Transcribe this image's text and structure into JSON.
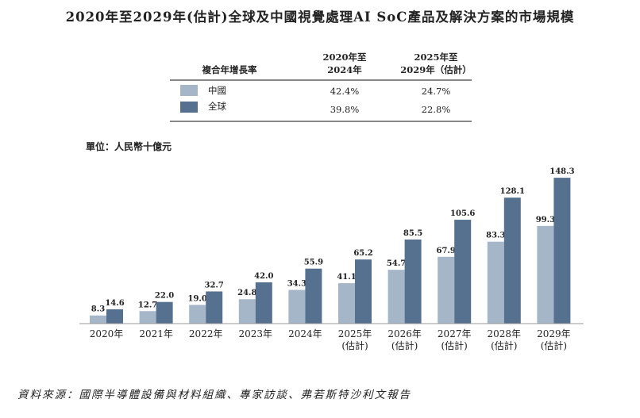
{
  "title": "2020年至2029年(估計)全球及中國視覺處理AI SoC產品及解決方案的市場規模",
  "cagr_table": {
    "label": "複合年增長率",
    "col1": [
      "2020年至",
      "2024年"
    ],
    "col2": [
      "2025年至",
      "2029年（估計）"
    ],
    "rows": [
      {
        "name": "中國",
        "v1": "42.4%",
        "v2": "24.7%"
      },
      {
        "name": "全球",
        "v1": "39.8%",
        "v2": "22.8%"
      }
    ]
  },
  "unit": "單位：人民幣十億元",
  "source": "資料來源：國際半導體設備與材料組織、專家訪談、弗若斯特沙利文報告",
  "colors": {
    "china": "#a5b6c9",
    "global": "#56708f"
  },
  "chart_data": {
    "type": "bar",
    "title": "2020年至2029年(估計)全球及中國視覺處理AI SoC產品及解決方案的市場規模",
    "ylabel": "單位：人民幣十億元",
    "categories": [
      [
        "2020年"
      ],
      [
        "2021年"
      ],
      [
        "2022年"
      ],
      [
        "2023年"
      ],
      [
        "2024年"
      ],
      [
        "2025年",
        "(估計)"
      ],
      [
        "2026年",
        "(估計)"
      ],
      [
        "2027年",
        "(估計)"
      ],
      [
        "2028年",
        "(估計)"
      ],
      [
        "2029年",
        "(估計)"
      ]
    ],
    "series": [
      {
        "name": "中國",
        "values": [
          8.3,
          12.7,
          19.0,
          24.8,
          34.3,
          41.1,
          54.7,
          67.9,
          83.3,
          99.3
        ]
      },
      {
        "name": "全球",
        "values": [
          14.6,
          22.0,
          32.7,
          42.0,
          55.9,
          65.2,
          85.5,
          105.6,
          128.1,
          148.3
        ]
      }
    ],
    "ylim": [
      0,
      150
    ],
    "legend": "top"
  }
}
